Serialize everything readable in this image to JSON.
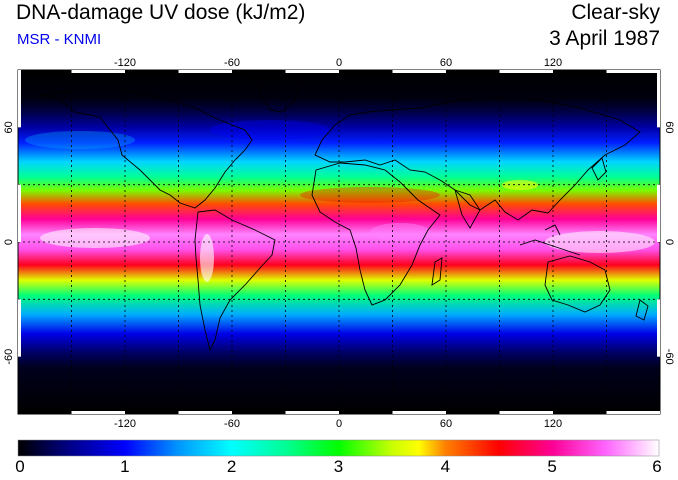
{
  "header": {
    "title": "DNA-damage UV dose (kJ/m2)",
    "source": "MSR - KNMI",
    "condition": "Clear-sky",
    "date": "3 April 1987"
  },
  "map": {
    "lon_range": [
      -180,
      180
    ],
    "lat_range": [
      -90,
      90
    ],
    "lon_tick_labels": [
      "-120",
      "-60",
      "0",
      "60",
      "120"
    ],
    "lat_tick_labels": [
      "60",
      "0",
      "-60"
    ],
    "lon_grid": [
      -150,
      -120,
      -90,
      -60,
      -30,
      0,
      30,
      60,
      90,
      120,
      150
    ],
    "lat_grid": [
      -30,
      0,
      30
    ],
    "dose_profile": [
      {
        "lat": 90,
        "dose": 0.0
      },
      {
        "lat": 75,
        "dose": 0.05
      },
      {
        "lat": 68,
        "dose": 0.25
      },
      {
        "lat": 60,
        "dose": 0.6
      },
      {
        "lat": 52,
        "dose": 1.1
      },
      {
        "lat": 42,
        "dose": 1.8
      },
      {
        "lat": 34,
        "dose": 2.5
      },
      {
        "lat": 27,
        "dose": 3.3
      },
      {
        "lat": 20,
        "dose": 4.2
      },
      {
        "lat": 12,
        "dose": 5.0
      },
      {
        "lat": 4,
        "dose": 5.6
      },
      {
        "lat": -4,
        "dose": 5.4
      },
      {
        "lat": -12,
        "dose": 4.6
      },
      {
        "lat": -20,
        "dose": 3.6
      },
      {
        "lat": -28,
        "dose": 2.6
      },
      {
        "lat": -38,
        "dose": 1.6
      },
      {
        "lat": -48,
        "dose": 0.9
      },
      {
        "lat": -58,
        "dose": 0.35
      },
      {
        "lat": -66,
        "dose": 0.1
      },
      {
        "lat": -90,
        "dose": 0.0
      }
    ]
  },
  "colorbar": {
    "min": 0,
    "max": 6,
    "tick_labels": [
      "0",
      "1",
      "2",
      "3",
      "4",
      "5",
      "6"
    ],
    "stops": [
      {
        "value": 0.0,
        "color": "#000000"
      },
      {
        "value": 0.5,
        "color": "#00008c"
      },
      {
        "value": 1.0,
        "color": "#0000ff"
      },
      {
        "value": 1.5,
        "color": "#0096ff"
      },
      {
        "value": 2.0,
        "color": "#00ffff"
      },
      {
        "value": 2.5,
        "color": "#00ff96"
      },
      {
        "value": 3.0,
        "color": "#00ff00"
      },
      {
        "value": 3.5,
        "color": "#c8ff00"
      },
      {
        "value": 3.75,
        "color": "#ffff00"
      },
      {
        "value": 4.0,
        "color": "#ff8000"
      },
      {
        "value": 4.5,
        "color": "#ff0000"
      },
      {
        "value": 5.0,
        "color": "#ff0096"
      },
      {
        "value": 5.5,
        "color": "#ff64ff"
      },
      {
        "value": 6.0,
        "color": "#ffffff"
      }
    ]
  }
}
